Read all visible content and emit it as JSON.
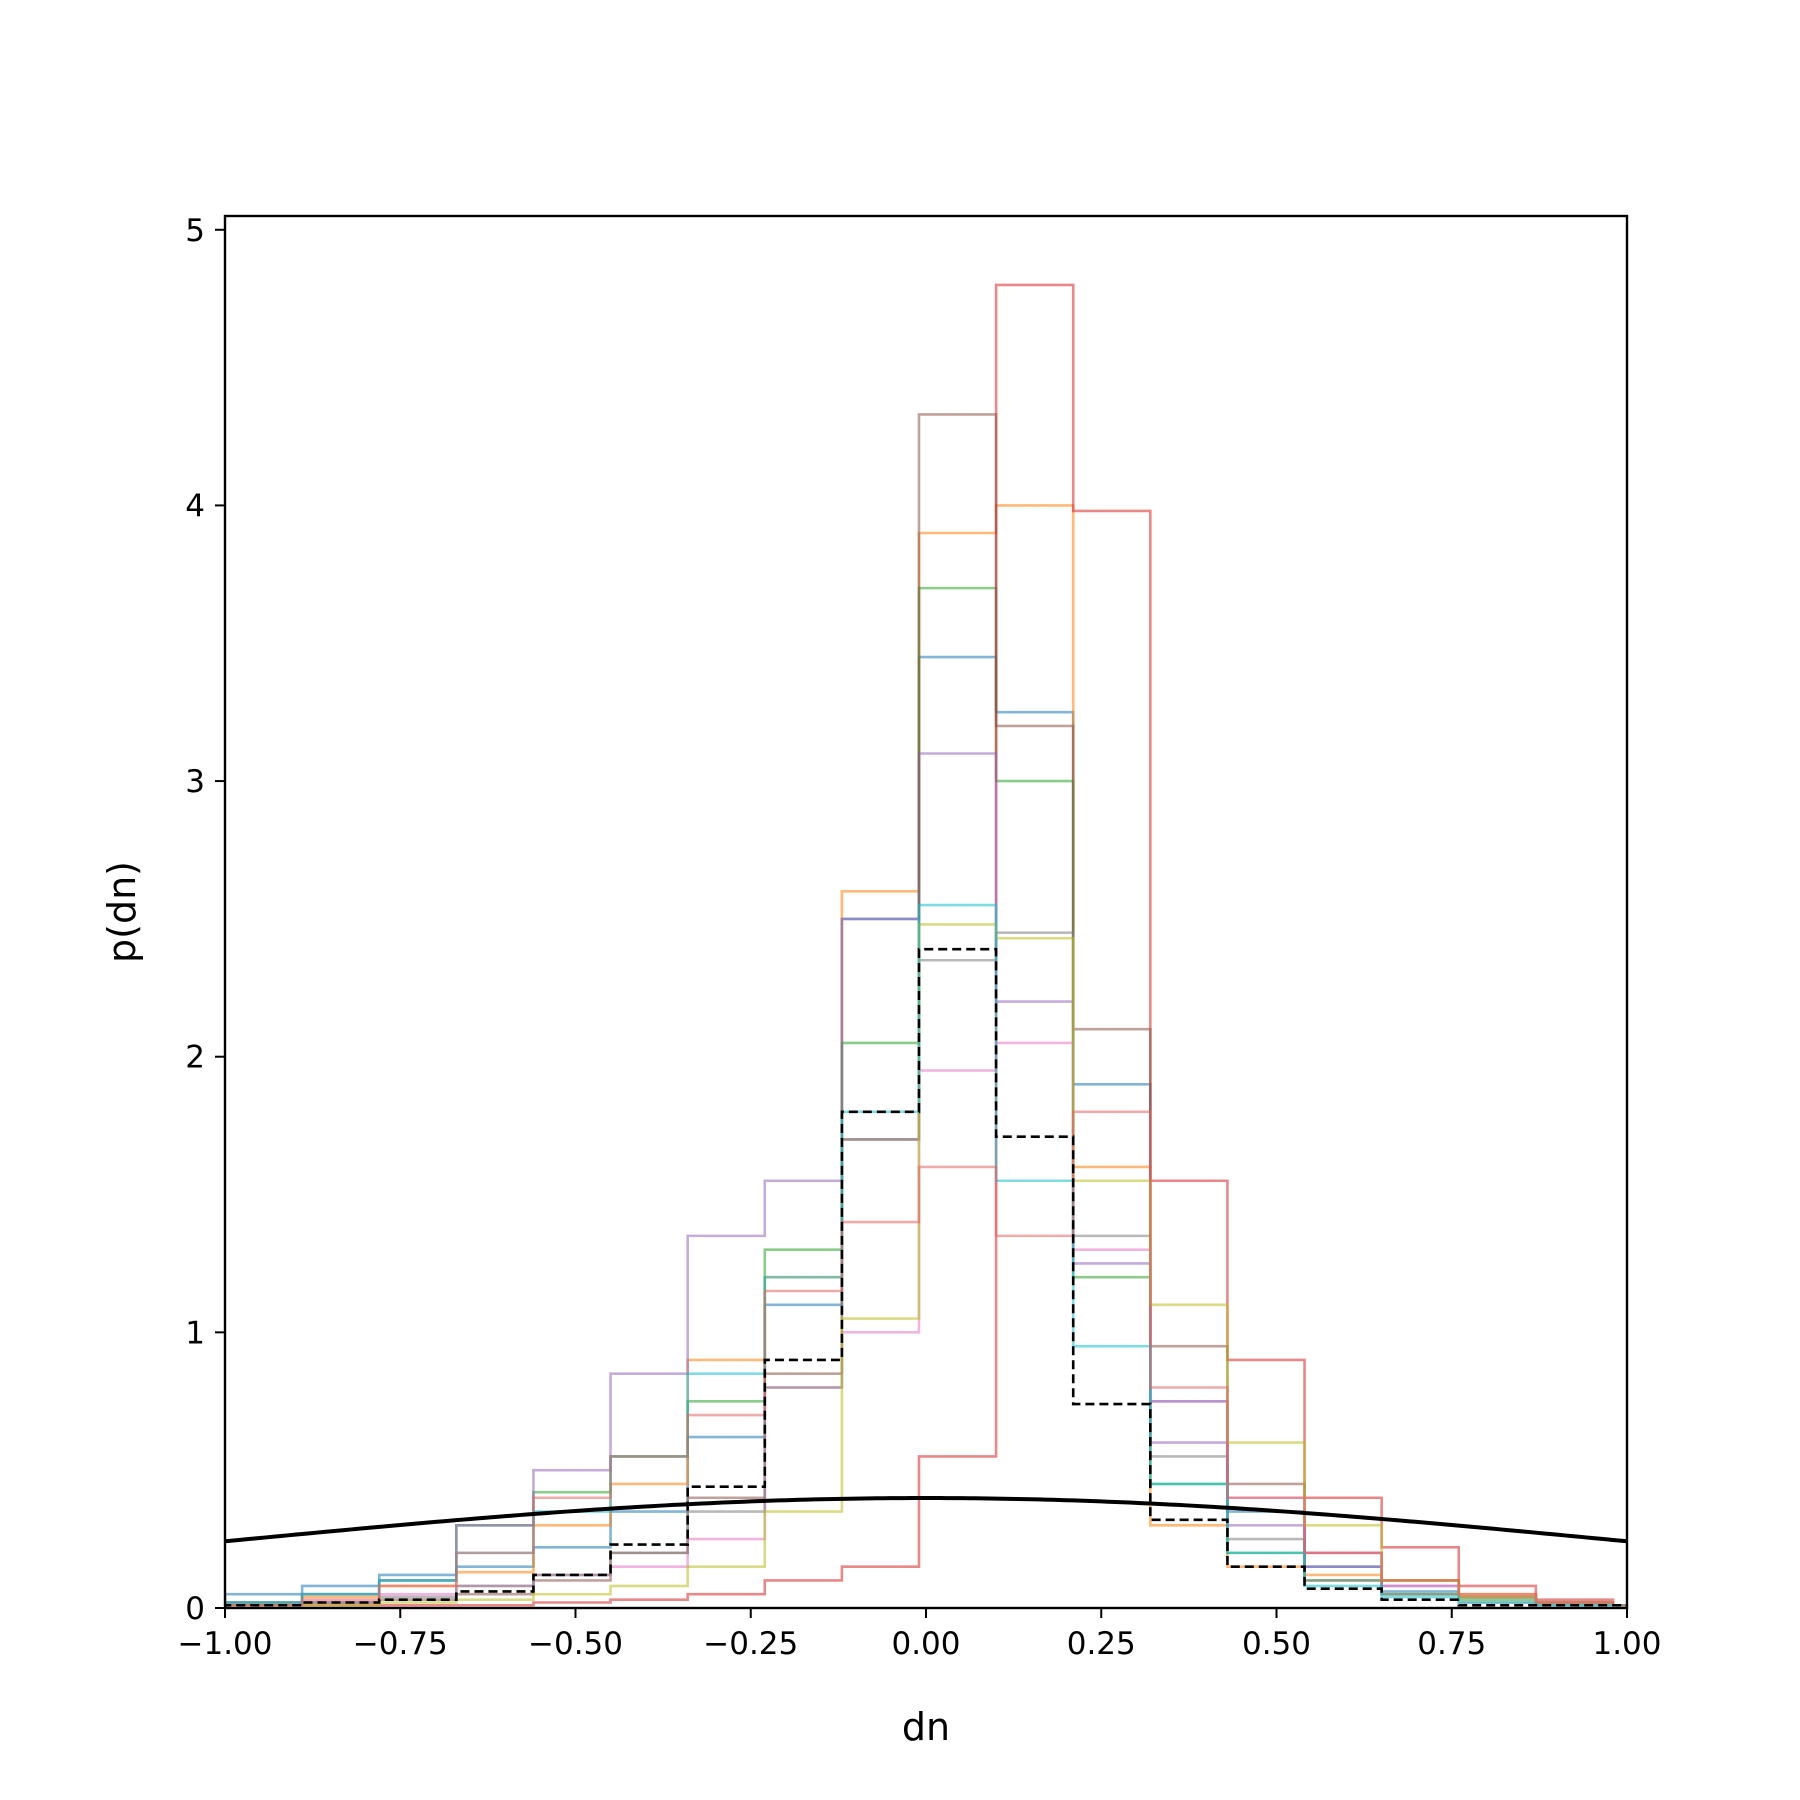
{
  "chart_data": {
    "type": "histogram",
    "xlabel": "dn",
    "ylabel": "p(dn)",
    "xlim": [
      -1.0,
      1.0
    ],
    "ylim": [
      0,
      5.05
    ],
    "grid": false,
    "legend": "none",
    "x_ticks": [
      "−1.00",
      "−0.75",
      "−0.50",
      "−0.25",
      "0.00",
      "0.25",
      "0.50",
      "0.75",
      "1.00"
    ],
    "x_tick_values": [
      -1.0,
      -0.75,
      -0.5,
      -0.25,
      0.0,
      0.25,
      0.5,
      0.75,
      1.0
    ],
    "y_ticks": [
      "0",
      "1",
      "2",
      "3",
      "4",
      "5"
    ],
    "y_tick_values": [
      0,
      1,
      2,
      3,
      4,
      5
    ],
    "series": [
      {
        "color": "#1f77b4",
        "edges": [
          -1.0,
          -0.89,
          -0.78,
          -0.67,
          -0.56,
          -0.45,
          -0.34,
          -0.23,
          -0.12,
          -0.01,
          0.1,
          0.21,
          0.32,
          0.43,
          0.54,
          0.65,
          0.76,
          0.87,
          0.98,
          1.0
        ],
        "values": [
          0.05,
          0.08,
          0.12,
          0.15,
          0.22,
          0.35,
          0.62,
          1.1,
          2.5,
          3.45,
          3.25,
          1.9,
          0.75,
          0.35,
          0.15,
          0.06,
          0.04,
          0.02,
          0.01
        ]
      },
      {
        "color": "#ff7f0e",
        "edges": [
          -1.0,
          -0.89,
          -0.78,
          -0.67,
          -0.56,
          -0.45,
          -0.34,
          -0.23,
          -0.12,
          -0.01,
          0.1,
          0.21,
          0.32,
          0.43,
          0.54,
          0.65,
          0.76,
          0.87,
          0.98,
          1.0
        ],
        "values": [
          0.02,
          0.04,
          0.08,
          0.13,
          0.3,
          0.45,
          0.9,
          1.2,
          2.6,
          3.9,
          4.0,
          1.6,
          0.3,
          0.15,
          0.12,
          0.1,
          0.05,
          0.02,
          0.01
        ]
      },
      {
        "color": "#2ca02c",
        "edges": [
          -1.0,
          -0.89,
          -0.78,
          -0.67,
          -0.56,
          -0.45,
          -0.34,
          -0.23,
          -0.12,
          -0.01,
          0.1,
          0.21,
          0.32,
          0.43,
          0.54,
          0.65,
          0.76,
          0.87,
          0.98,
          1.0
        ],
        "values": [
          0.02,
          0.05,
          0.1,
          0.3,
          0.42,
          0.55,
          0.75,
          1.3,
          2.05,
          3.7,
          3.0,
          1.2,
          0.45,
          0.2,
          0.1,
          0.05,
          0.03,
          0.02,
          0.01
        ]
      },
      {
        "color": "#d62728",
        "edges": [
          -1.0,
          -0.89,
          -0.78,
          -0.67,
          -0.56,
          -0.45,
          -0.34,
          -0.23,
          -0.12,
          -0.01,
          0.1,
          0.21,
          0.32,
          0.43,
          0.54,
          0.65,
          0.76,
          0.87,
          0.98,
          1.0
        ],
        "values": [
          0.01,
          0.01,
          0.01,
          0.01,
          0.02,
          0.03,
          0.05,
          0.1,
          0.15,
          0.55,
          4.8,
          3.98,
          1.55,
          0.9,
          0.4,
          0.22,
          0.08,
          0.03,
          0.01
        ]
      },
      {
        "color": "#9467bd",
        "edges": [
          -1.0,
          -0.89,
          -0.78,
          -0.67,
          -0.56,
          -0.45,
          -0.34,
          -0.23,
          -0.12,
          -0.01,
          0.1,
          0.21,
          0.32,
          0.43,
          0.54,
          0.65,
          0.76,
          0.87,
          0.98,
          1.0
        ],
        "values": [
          0.02,
          0.05,
          0.1,
          0.3,
          0.5,
          0.85,
          1.35,
          1.55,
          2.5,
          3.1,
          2.2,
          1.25,
          0.6,
          0.3,
          0.15,
          0.08,
          0.04,
          0.02,
          0.01
        ]
      },
      {
        "color": "#8c564b",
        "edges": [
          -1.0,
          -0.89,
          -0.78,
          -0.67,
          -0.56,
          -0.45,
          -0.34,
          -0.23,
          -0.12,
          -0.01,
          0.1,
          0.21,
          0.32,
          0.43,
          0.54,
          0.65,
          0.76,
          0.87,
          0.98,
          1.0
        ],
        "values": [
          0.01,
          0.02,
          0.03,
          0.05,
          0.1,
          0.2,
          0.4,
          0.85,
          1.7,
          4.33,
          3.2,
          2.1,
          0.95,
          0.45,
          0.2,
          0.1,
          0.04,
          0.02,
          0.01
        ]
      },
      {
        "color": "#e377c2",
        "edges": [
          -1.0,
          -0.89,
          -0.78,
          -0.67,
          -0.56,
          -0.45,
          -0.34,
          -0.23,
          -0.12,
          -0.01,
          0.1,
          0.21,
          0.32,
          0.43,
          0.54,
          0.65,
          0.76,
          0.87,
          0.98,
          1.0
        ],
        "values": [
          0.01,
          0.02,
          0.05,
          0.08,
          0.12,
          0.15,
          0.25,
          0.8,
          1.0,
          1.95,
          2.05,
          1.3,
          0.75,
          0.4,
          0.2,
          0.08,
          0.04,
          0.02,
          0.01
        ]
      },
      {
        "color": "#7f7f7f",
        "edges": [
          -1.0,
          -0.89,
          -0.78,
          -0.67,
          -0.56,
          -0.45,
          -0.34,
          -0.23,
          -0.12,
          -0.01,
          0.1,
          0.21,
          0.32,
          0.43,
          0.54,
          0.65,
          0.76,
          0.87,
          0.98,
          1.0
        ],
        "values": [
          0.01,
          0.02,
          0.04,
          0.08,
          0.12,
          0.2,
          0.35,
          0.8,
          1.7,
          2.35,
          2.45,
          1.35,
          0.55,
          0.25,
          0.1,
          0.05,
          0.02,
          0.01,
          0.01
        ]
      },
      {
        "color": "#bcbd22",
        "edges": [
          -1.0,
          -0.89,
          -0.78,
          -0.67,
          -0.56,
          -0.45,
          -0.34,
          -0.23,
          -0.12,
          -0.01,
          0.1,
          0.21,
          0.32,
          0.43,
          0.54,
          0.65,
          0.76,
          0.87,
          0.98,
          1.0
        ],
        "values": [
          0.01,
          0.01,
          0.02,
          0.03,
          0.05,
          0.08,
          0.15,
          0.35,
          1.05,
          2.48,
          2.43,
          1.55,
          1.1,
          0.6,
          0.3,
          0.1,
          0.04,
          0.02,
          0.01
        ]
      },
      {
        "color": "#17becf",
        "edges": [
          -1.0,
          -0.89,
          -0.78,
          -0.67,
          -0.56,
          -0.45,
          -0.34,
          -0.23,
          -0.12,
          -0.01,
          0.1,
          0.21,
          0.32,
          0.43,
          0.54,
          0.65,
          0.76,
          0.87,
          0.98,
          1.0
        ],
        "values": [
          0.02,
          0.05,
          0.1,
          0.2,
          0.35,
          0.55,
          0.85,
          1.2,
          1.8,
          2.55,
          1.55,
          0.95,
          0.45,
          0.2,
          0.08,
          0.04,
          0.02,
          0.01,
          0.01
        ]
      },
      {
        "color": "#e06666",
        "edges": [
          -1.0,
          -0.89,
          -0.78,
          -0.67,
          -0.56,
          -0.45,
          -0.34,
          -0.23,
          -0.12,
          -0.01,
          0.1,
          0.21,
          0.32,
          0.43,
          0.54,
          0.65,
          0.76,
          0.87,
          0.98,
          1.0
        ],
        "values": [
          0.01,
          0.03,
          0.08,
          0.2,
          0.4,
          0.55,
          0.7,
          1.15,
          1.4,
          1.6,
          1.35,
          1.8,
          0.8,
          0.4,
          0.2,
          0.1,
          0.05,
          0.02,
          0.01
        ]
      }
    ],
    "reference_hist": {
      "style": "dashed",
      "color": "#000000",
      "edges": [
        -1.0,
        -0.89,
        -0.78,
        -0.67,
        -0.56,
        -0.45,
        -0.34,
        -0.23,
        -0.12,
        -0.01,
        0.1,
        0.21,
        0.32,
        0.43,
        0.54,
        0.65,
        0.76,
        0.87,
        0.98,
        1.0
      ],
      "values": [
        0.01,
        0.02,
        0.03,
        0.06,
        0.12,
        0.23,
        0.44,
        0.9,
        1.8,
        2.39,
        1.71,
        0.74,
        0.32,
        0.15,
        0.07,
        0.03,
        0.01,
        0.01,
        0.01
      ]
    },
    "gaussian_curve": {
      "color": "#000000",
      "mean": 0.0,
      "sigma": 1.0
    }
  }
}
